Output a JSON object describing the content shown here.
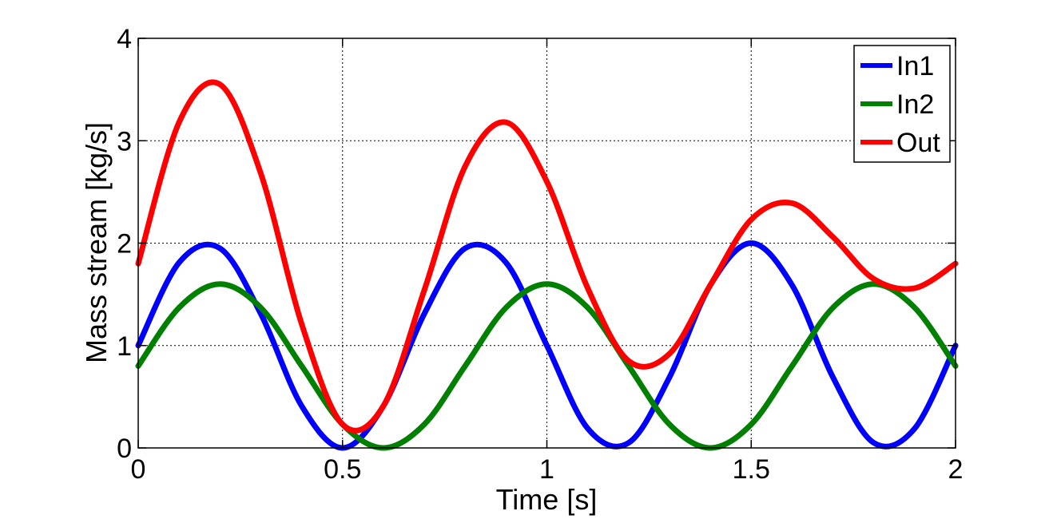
{
  "chart_data": {
    "type": "line",
    "title": "",
    "xlabel": "Time [s]",
    "ylabel": "Mass stream [kg/s]",
    "xlim": [
      0,
      2
    ],
    "ylim": [
      0,
      4
    ],
    "xticks": [
      0,
      0.5,
      1,
      1.5,
      2
    ],
    "xtick_labels": [
      "0",
      "0.5",
      "1",
      "1.5",
      "2"
    ],
    "yticks": [
      0,
      1,
      2,
      3,
      4
    ],
    "ytick_labels": [
      "0",
      "1",
      "2",
      "3",
      "4"
    ],
    "grid": true,
    "legend_position": "top-right",
    "series": [
      {
        "name": "In1",
        "color": "#0000ff",
        "x": [
          0,
          0.1,
          0.2,
          0.3,
          0.4,
          0.5,
          0.6,
          0.7,
          0.8,
          0.9,
          1.0,
          1.1,
          1.2,
          1.3,
          1.4,
          1.5,
          1.6,
          1.7,
          1.8,
          1.9,
          2.0
        ],
        "y": [
          1.0,
          1.81,
          1.95,
          1.31,
          0.41,
          0.0,
          0.41,
          1.31,
          1.95,
          1.81,
          1.0,
          0.19,
          0.05,
          0.69,
          1.59,
          2.0,
          1.59,
          0.69,
          0.05,
          0.19,
          1.0
        ]
      },
      {
        "name": "In2",
        "color": "#008000",
        "x": [
          0,
          0.1,
          0.2,
          0.3,
          0.4,
          0.5,
          0.6,
          0.7,
          0.8,
          0.9,
          1.0,
          1.1,
          1.2,
          1.3,
          1.4,
          1.5,
          1.6,
          1.7,
          1.8,
          1.9,
          2.0
        ],
        "y": [
          0.8,
          1.37,
          1.6,
          1.37,
          0.8,
          0.23,
          0.0,
          0.23,
          0.8,
          1.37,
          1.6,
          1.37,
          0.8,
          0.23,
          0.0,
          0.23,
          0.8,
          1.37,
          1.6,
          1.37,
          0.8
        ]
      },
      {
        "name": "Out",
        "color": "#ff0000",
        "x": [
          0,
          0.1,
          0.2,
          0.3,
          0.4,
          0.5,
          0.6,
          0.7,
          0.8,
          0.9,
          1.0,
          1.1,
          1.2,
          1.3,
          1.4,
          1.5,
          1.6,
          1.7,
          1.8,
          1.9,
          2.0
        ],
        "y": [
          1.8,
          3.18,
          3.55,
          2.68,
          1.21,
          0.23,
          0.41,
          1.54,
          2.75,
          3.18,
          2.6,
          1.56,
          0.85,
          0.92,
          1.59,
          2.23,
          2.39,
          2.06,
          1.65,
          1.56,
          1.8
        ]
      }
    ]
  }
}
